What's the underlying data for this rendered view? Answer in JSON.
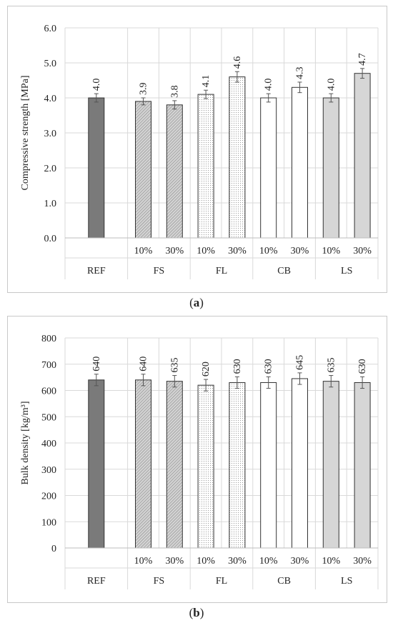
{
  "chart_data": [
    {
      "id": "a",
      "type": "bar",
      "caption_label": "a",
      "ylabel": "Compressive strength  [MPa]",
      "ylim": [
        0,
        6
      ],
      "yticks": [
        "0.0",
        "1.0",
        "2.0",
        "3.0",
        "4.0",
        "5.0",
        "6.0"
      ],
      "grid": true,
      "groups": [
        "REF",
        "FS",
        "FL",
        "CB",
        "LS"
      ],
      "bars": [
        {
          "group": "REF",
          "label": "",
          "value": 4.0,
          "data_label": "4.0",
          "err": 0.12,
          "fill": "solid-dark"
        },
        {
          "group": "FS",
          "label": "10%",
          "value": 3.9,
          "data_label": "3.9",
          "err": 0.1,
          "fill": "hatch-dense"
        },
        {
          "group": "FS",
          "label": "30%",
          "value": 3.8,
          "data_label": "3.8",
          "err": 0.12,
          "fill": "hatch-dense"
        },
        {
          "group": "FL",
          "label": "10%",
          "value": 4.1,
          "data_label": "4.1",
          "err": 0.12,
          "fill": "dots"
        },
        {
          "group": "FL",
          "label": "30%",
          "value": 4.6,
          "data_label": "4.6",
          "err": 0.15,
          "fill": "dots"
        },
        {
          "group": "CB",
          "label": "10%",
          "value": 4.0,
          "data_label": "4.0",
          "err": 0.12,
          "fill": "white"
        },
        {
          "group": "CB",
          "label": "30%",
          "value": 4.3,
          "data_label": "4.3",
          "err": 0.15,
          "fill": "white"
        },
        {
          "group": "LS",
          "label": "10%",
          "value": 4.0,
          "data_label": "4.0",
          "err": 0.12,
          "fill": "light-gray"
        },
        {
          "group": "LS",
          "label": "30%",
          "value": 4.7,
          "data_label": "4.7",
          "err": 0.14,
          "fill": "light-gray"
        }
      ]
    },
    {
      "id": "b",
      "type": "bar",
      "caption_label": "b",
      "ylabel": "Bulk density [kg/m³]",
      "ylim": [
        0,
        800
      ],
      "yticks": [
        "0",
        "100",
        "200",
        "300",
        "400",
        "500",
        "600",
        "700",
        "800"
      ],
      "grid": true,
      "groups": [
        "REF",
        "FS",
        "FL",
        "CB",
        "LS"
      ],
      "bars": [
        {
          "group": "REF",
          "label": "",
          "value": 640,
          "data_label": "640",
          "err": 22,
          "fill": "solid-dark"
        },
        {
          "group": "FS",
          "label": "10%",
          "value": 640,
          "data_label": "640",
          "err": 22,
          "fill": "hatch-dense"
        },
        {
          "group": "FS",
          "label": "30%",
          "value": 635,
          "data_label": "635",
          "err": 22,
          "fill": "hatch-dense"
        },
        {
          "group": "FL",
          "label": "10%",
          "value": 620,
          "data_label": "620",
          "err": 22,
          "fill": "dots"
        },
        {
          "group": "FL",
          "label": "30%",
          "value": 630,
          "data_label": "630",
          "err": 22,
          "fill": "dots"
        },
        {
          "group": "CB",
          "label": "10%",
          "value": 630,
          "data_label": "630",
          "err": 22,
          "fill": "white"
        },
        {
          "group": "CB",
          "label": "30%",
          "value": 645,
          "data_label": "645",
          "err": 22,
          "fill": "white"
        },
        {
          "group": "LS",
          "label": "10%",
          "value": 635,
          "data_label": "635",
          "err": 22,
          "fill": "light-gray"
        },
        {
          "group": "LS",
          "label": "30%",
          "value": 630,
          "data_label": "630",
          "err": 22,
          "fill": "light-gray"
        }
      ]
    }
  ],
  "colors": {
    "solid-dark": "#7a7a7a",
    "hatch-dense": "#bcbcbc",
    "dots": "#f2f2f2",
    "white": "#ffffff",
    "light-gray": "#d6d6d6",
    "grid": "#d9d9d9",
    "bar-stroke": "#333333"
  }
}
